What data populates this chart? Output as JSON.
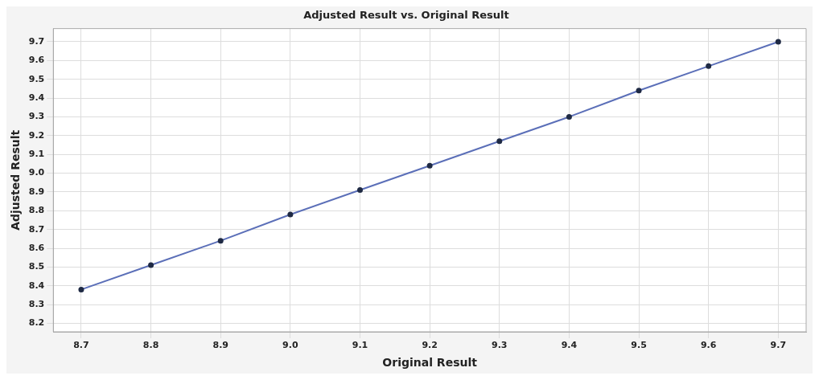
{
  "chart_data": {
    "type": "line",
    "title": "Adjusted Result vs. Original Result",
    "xlabel": "Original Result",
    "ylabel": "Adjusted Result",
    "x": [
      8.7,
      8.8,
      8.9,
      9.0,
      9.1,
      9.2,
      9.3,
      9.4,
      9.5,
      9.6,
      9.7
    ],
    "series": [
      {
        "color": "#5b6fb8",
        "values": [
          8.38,
          8.51,
          8.64,
          8.78,
          8.91,
          9.04,
          9.17,
          9.3,
          9.44,
          9.57,
          9.7
        ]
      }
    ],
    "xlim": [
      8.66,
      9.74
    ],
    "xticks": [
      {
        "value": 8.7,
        "label": "8.7"
      },
      {
        "value": 8.8,
        "label": "8.8"
      },
      {
        "value": 8.9,
        "label": "8.9"
      },
      {
        "value": 9.0,
        "label": "9.0"
      },
      {
        "value": 9.1,
        "label": "9.1"
      },
      {
        "value": 9.2,
        "label": "9.2"
      },
      {
        "value": 9.3,
        "label": "9.3"
      },
      {
        "value": 9.4,
        "label": "9.4"
      },
      {
        "value": 9.5,
        "label": "9.5"
      },
      {
        "value": 9.6,
        "label": "9.6"
      },
      {
        "value": 9.7,
        "label": "9.7"
      }
    ],
    "ylim": [
      8.155,
      9.77
    ],
    "yticks": [
      {
        "value": 8.2,
        "label": "8.2"
      },
      {
        "value": 8.3,
        "label": "8.3"
      },
      {
        "value": 8.4,
        "label": "8.4"
      },
      {
        "value": 8.5,
        "label": "8.5"
      },
      {
        "value": 8.6,
        "label": "8.6"
      },
      {
        "value": 8.7,
        "label": "8.7"
      },
      {
        "value": 8.8,
        "label": "8.8"
      },
      {
        "value": 8.9,
        "label": "8.9"
      },
      {
        "value": 9.0,
        "label": "9.0"
      },
      {
        "value": 9.1,
        "label": "9.1"
      },
      {
        "value": 9.2,
        "label": "9.2"
      },
      {
        "value": 9.3,
        "label": "9.3"
      },
      {
        "value": 9.4,
        "label": "9.4"
      },
      {
        "value": 9.5,
        "label": "9.5"
      },
      {
        "value": 9.6,
        "label": "9.6"
      },
      {
        "value": 9.7,
        "label": "9.7"
      }
    ],
    "grid": true,
    "marker": "circle",
    "line_style": "solid",
    "legend": false
  }
}
